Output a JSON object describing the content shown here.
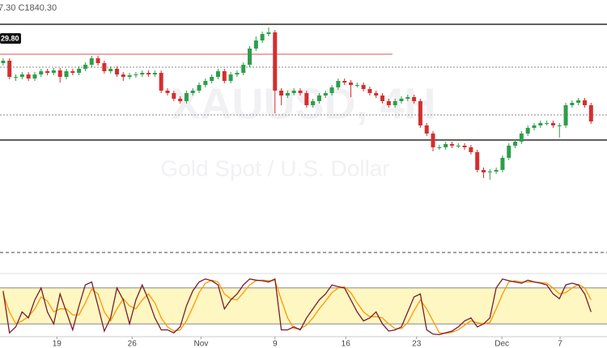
{
  "chart_data": [
    {
      "type": "candlestick",
      "header": "7.30 C1840.30",
      "watermark": "XAUUSD, 4H",
      "watermark_subtitle": "Gold Spot / U.S. Dollar",
      "price_label": "29.80",
      "up_color": "#2e9e4a",
      "down_color": "#d32f2f",
      "xlim": [
        -0.5,
        94.5
      ],
      "ylim": [
        1690,
        1990
      ],
      "xticks": [
        {
          "value": 8.5,
          "label": "19"
        },
        {
          "value": 20.4,
          "label": "26"
        },
        {
          "value": 31.3,
          "label": "Nov"
        },
        {
          "value": 43.0,
          "label": "9"
        },
        {
          "value": 54.2,
          "label": "16"
        },
        {
          "value": 65.4,
          "label": "23"
        },
        {
          "value": 78.9,
          "label": "Dec"
        },
        {
          "value": 88.1,
          "label": "7"
        }
      ],
      "levels": [
        {
          "value": 1960,
          "style": "solid",
          "color": "#000000"
        },
        {
          "value": 1817,
          "style": "solid",
          "color": "#000000"
        },
        {
          "value": 1907,
          "style": "dotted",
          "color": "#888888"
        },
        {
          "value": 1848,
          "style": "dotted",
          "color": "#888888"
        },
        {
          "value": 1923,
          "style": "solid",
          "color": "#e57373",
          "end": 61.6
        }
      ],
      "open": [
        1912,
        1915,
        1895,
        1895,
        1898,
        1893,
        1898,
        1902,
        1900,
        1903,
        1895,
        1902,
        1900,
        1905,
        1910,
        1918,
        1912,
        1902,
        1905,
        1898,
        1895,
        1897,
        1898,
        1900,
        1898,
        1900,
        1878,
        1875,
        1868,
        1865,
        1875,
        1878,
        1885,
        1890,
        1895,
        1902,
        1890,
        1898,
        1900,
        1910,
        1930,
        1940,
        1948,
        1950,
        1878,
        1872,
        1875,
        1878,
        1875,
        1860,
        1865,
        1872,
        1875,
        1882,
        1890,
        1888,
        1885,
        1885,
        1880,
        1875,
        1872,
        1865,
        1860,
        1865,
        1868,
        1870,
        1865,
        1835,
        1825,
        1808,
        1808,
        1812,
        1810,
        1810,
        1808,
        1802,
        1780,
        1777,
        1778,
        1780,
        1795,
        1810,
        1815,
        1825,
        1832,
        1835,
        1838,
        1838,
        1835,
        1835,
        1860,
        1863,
        1866,
        1860
      ],
      "high": [
        1918,
        1918,
        1898,
        1901,
        1901,
        1901,
        1905,
        1905,
        1906,
        1906,
        1905,
        1905,
        1908,
        1913,
        1921,
        1921,
        1915,
        1908,
        1908,
        1901,
        1900,
        1901,
        1903,
        1903,
        1903,
        1903,
        1881,
        1878,
        1871,
        1878,
        1881,
        1888,
        1893,
        1898,
        1905,
        1905,
        1901,
        1903,
        1913,
        1933,
        1945,
        1951,
        1956,
        1953,
        1881,
        1878,
        1881,
        1881,
        1878,
        1868,
        1875,
        1878,
        1885,
        1893,
        1893,
        1891,
        1888,
        1888,
        1883,
        1878,
        1875,
        1868,
        1868,
        1871,
        1873,
        1873,
        1868,
        1838,
        1828,
        1811,
        1815,
        1815,
        1813,
        1813,
        1811,
        1805,
        1783,
        1781,
        1783,
        1798,
        1813,
        1818,
        1828,
        1835,
        1838,
        1841,
        1841,
        1841,
        1838,
        1863,
        1866,
        1869,
        1869,
        1863
      ],
      "low": [
        1909,
        1892,
        1890,
        1892,
        1890,
        1890,
        1895,
        1897,
        1897,
        1888,
        1892,
        1897,
        1897,
        1902,
        1907,
        1909,
        1899,
        1899,
        1895,
        1890,
        1892,
        1894,
        1895,
        1895,
        1895,
        1875,
        1872,
        1865,
        1862,
        1862,
        1872,
        1875,
        1882,
        1887,
        1892,
        1887,
        1887,
        1895,
        1897,
        1907,
        1927,
        1937,
        1945,
        1850,
        1860,
        1869,
        1872,
        1872,
        1857,
        1857,
        1862,
        1869,
        1872,
        1879,
        1885,
        1870,
        1882,
        1877,
        1872,
        1869,
        1862,
        1857,
        1857,
        1862,
        1865,
        1862,
        1832,
        1822,
        1803,
        1805,
        1805,
        1807,
        1807,
        1805,
        1799,
        1777,
        1770,
        1768,
        1775,
        1777,
        1792,
        1807,
        1812,
        1822,
        1829,
        1832,
        1835,
        1832,
        1820,
        1832,
        1857,
        1860,
        1857,
        1837
      ],
      "close": [
        1915,
        1895,
        1895,
        1898,
        1893,
        1898,
        1902,
        1900,
        1903,
        1895,
        1902,
        1900,
        1905,
        1910,
        1918,
        1912,
        1902,
        1905,
        1898,
        1895,
        1897,
        1898,
        1900,
        1898,
        1900,
        1878,
        1875,
        1868,
        1865,
        1875,
        1878,
        1885,
        1890,
        1895,
        1902,
        1890,
        1898,
        1900,
        1910,
        1930,
        1940,
        1948,
        1950,
        1878,
        1872,
        1875,
        1878,
        1875,
        1860,
        1865,
        1872,
        1875,
        1882,
        1890,
        1888,
        1885,
        1885,
        1880,
        1875,
        1872,
        1865,
        1860,
        1865,
        1868,
        1870,
        1865,
        1835,
        1825,
        1808,
        1808,
        1812,
        1810,
        1810,
        1808,
        1802,
        1780,
        1777,
        1778,
        1780,
        1795,
        1810,
        1815,
        1825,
        1832,
        1835,
        1838,
        1838,
        1835,
        1835,
        1860,
        1863,
        1866,
        1860,
        1840
      ]
    },
    {
      "type": "line",
      "ylim": [
        0,
        100
      ],
      "bands": [
        20,
        80
      ],
      "band_color": "#fff7c2",
      "series": [
        {
          "color": "#7a1c2a",
          "values": [
            75,
            5,
            15,
            40,
            30,
            60,
            80,
            40,
            20,
            70,
            40,
            10,
            50,
            85,
            90,
            50,
            8,
            30,
            80,
            60,
            20,
            60,
            85,
            60,
            30,
            10,
            10,
            5,
            15,
            50,
            75,
            90,
            95,
            92,
            85,
            45,
            60,
            70,
            85,
            95,
            93,
            92,
            90,
            95,
            10,
            10,
            15,
            10,
            30,
            45,
            60,
            70,
            85,
            82,
            80,
            60,
            40,
            25,
            30,
            40,
            20,
            8,
            10,
            15,
            40,
            65,
            70,
            10,
            3,
            2,
            5,
            8,
            15,
            25,
            30,
            15,
            20,
            30,
            80,
            95,
            92,
            90,
            88,
            93,
            90,
            88,
            85,
            70,
            62,
            85,
            88,
            85,
            70,
            40
          ]
        },
        {
          "color": "#ff9800",
          "values": [
            70,
            40,
            20,
            25,
            32,
            45,
            65,
            58,
            40,
            45,
            45,
            35,
            35,
            55,
            78,
            70,
            40,
            25,
            45,
            62,
            50,
            45,
            60,
            70,
            55,
            30,
            15,
            8,
            10,
            25,
            48,
            72,
            88,
            93,
            90,
            70,
            62,
            60,
            72,
            85,
            92,
            93,
            92,
            92,
            60,
            30,
            12,
            12,
            18,
            30,
            45,
            58,
            72,
            80,
            82,
            72,
            55,
            40,
            32,
            32,
            30,
            20,
            12,
            12,
            22,
            42,
            60,
            45,
            25,
            5,
            4,
            6,
            10,
            18,
            25,
            22,
            20,
            22,
            45,
            70,
            90,
            92,
            90,
            90,
            90,
            89,
            88,
            80,
            70,
            72,
            80,
            86,
            80,
            60
          ]
        }
      ]
    }
  ]
}
